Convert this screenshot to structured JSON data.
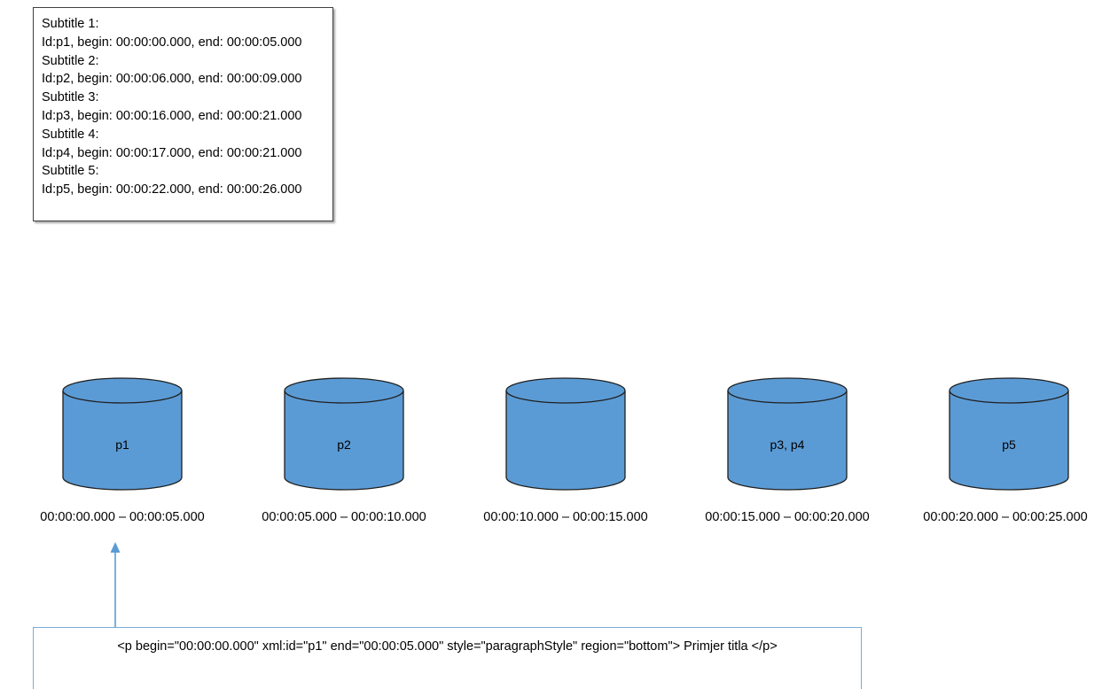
{
  "info_box": {
    "lines": [
      "Subtitle 1:",
      "Id:p1, begin: 00:00:00.000, end: 00:00:05.000",
      "Subtitle 2:",
      "Id:p2, begin: 00:00:06.000, end: 00:00:09.000",
      "Subtitle 3:",
      "Id:p3, begin: 00:00:16.000, end: 00:00:21.000",
      "Subtitle 4:",
      "Id:p4, begin: 00:00:17.000, end: 00:00:21.000",
      "Subtitle 5:",
      "Id:p5, begin: 00:00:22.000, end: 00:00:26.000"
    ]
  },
  "buckets": [
    {
      "label": "p1",
      "range": "00:00:00.000 – 00:00:05.000"
    },
    {
      "label": "p2",
      "range": "00:00:05.000 – 00:00:10.000"
    },
    {
      "label": "",
      "range": "00:00:10.000 – 00:00:15.000"
    },
    {
      "label": "p3, p4",
      "range": "00:00:15.000 – 00:00:20.000"
    },
    {
      "label": "p5",
      "range": "00:00:20.000 – 00:00:25.000"
    }
  ],
  "code_box": {
    "text": "<p  begin=\"00:00:00.000\" xml:id=\"p1\" end=\"00:00:05.000\" style=\"paragraphStyle\" region=\"bottom\"> Primjer titla </p>"
  },
  "colors": {
    "cylinder_fill": "#5b9bd5",
    "cylinder_stroke": "#1f1f1f",
    "arrow": "#5b9bd5",
    "code_border": "#7aaad6"
  }
}
